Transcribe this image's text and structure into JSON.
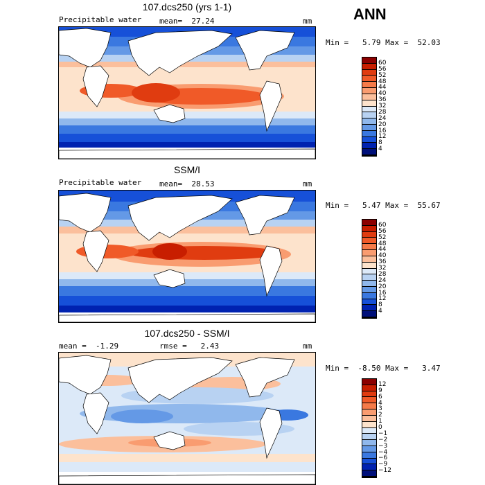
{
  "season": "ANN",
  "units": "mm",
  "panels": [
    {
      "title": "107.dcs250 (yrs 1-1)",
      "left_label": "Precipitable water",
      "mid_label": "mean=  27.24",
      "minmax": "Min =   5.79 Max =  52.03",
      "cbar_labels": [
        "60",
        "56",
        "52",
        "48",
        "44",
        "40",
        "36",
        "32",
        "28",
        "24",
        "20",
        "16",
        "12",
        "8",
        "4"
      ],
      "cbar_colors": [
        "#8b0000",
        "#c81e00",
        "#e03c10",
        "#f05a28",
        "#f57a48",
        "#f99c70",
        "#fbbf9c",
        "#fde3cc",
        "#dce9f8",
        "#b8d2f2",
        "#90b8ec",
        "#6499e6",
        "#3a78e0",
        "#1650d8",
        "#0022b0",
        "#00107a"
      ]
    },
    {
      "title": "SSM/I",
      "left_label": "Precipitable water",
      "mid_label": "mean=  28.53",
      "minmax": "Min =   5.47 Max =  55.67",
      "cbar_labels": [
        "60",
        "56",
        "52",
        "48",
        "44",
        "40",
        "36",
        "32",
        "28",
        "24",
        "20",
        "16",
        "12",
        "8",
        "4"
      ],
      "cbar_colors": [
        "#8b0000",
        "#c81e00",
        "#e03c10",
        "#f05a28",
        "#f57a48",
        "#f99c70",
        "#fbbf9c",
        "#fde3cc",
        "#dce9f8",
        "#b8d2f2",
        "#90b8ec",
        "#6499e6",
        "#3a78e0",
        "#1650d8",
        "#0022b0",
        "#00107a"
      ]
    },
    {
      "title": "107.dcs250 - SSM/I",
      "left_label": "mean =  -1.29",
      "mid_label": "rmse =   2.43",
      "minmax": "Min =  -8.50 Max =   3.47",
      "cbar_labels": [
        "12",
        "9",
        "6",
        "4",
        "3",
        "2",
        "1",
        "0",
        "−1",
        "−2",
        "−3",
        "−4",
        "−6",
        "−9",
        "−12"
      ],
      "cbar_colors": [
        "#8b0000",
        "#c81e00",
        "#e03c10",
        "#f05a28",
        "#f57a48",
        "#f99c70",
        "#fbbf9c",
        "#fde3cc",
        "#dce9f8",
        "#b8d2f2",
        "#90b8ec",
        "#6499e6",
        "#3a78e0",
        "#1650d8",
        "#0022b0",
        "#00107a"
      ]
    }
  ]
}
